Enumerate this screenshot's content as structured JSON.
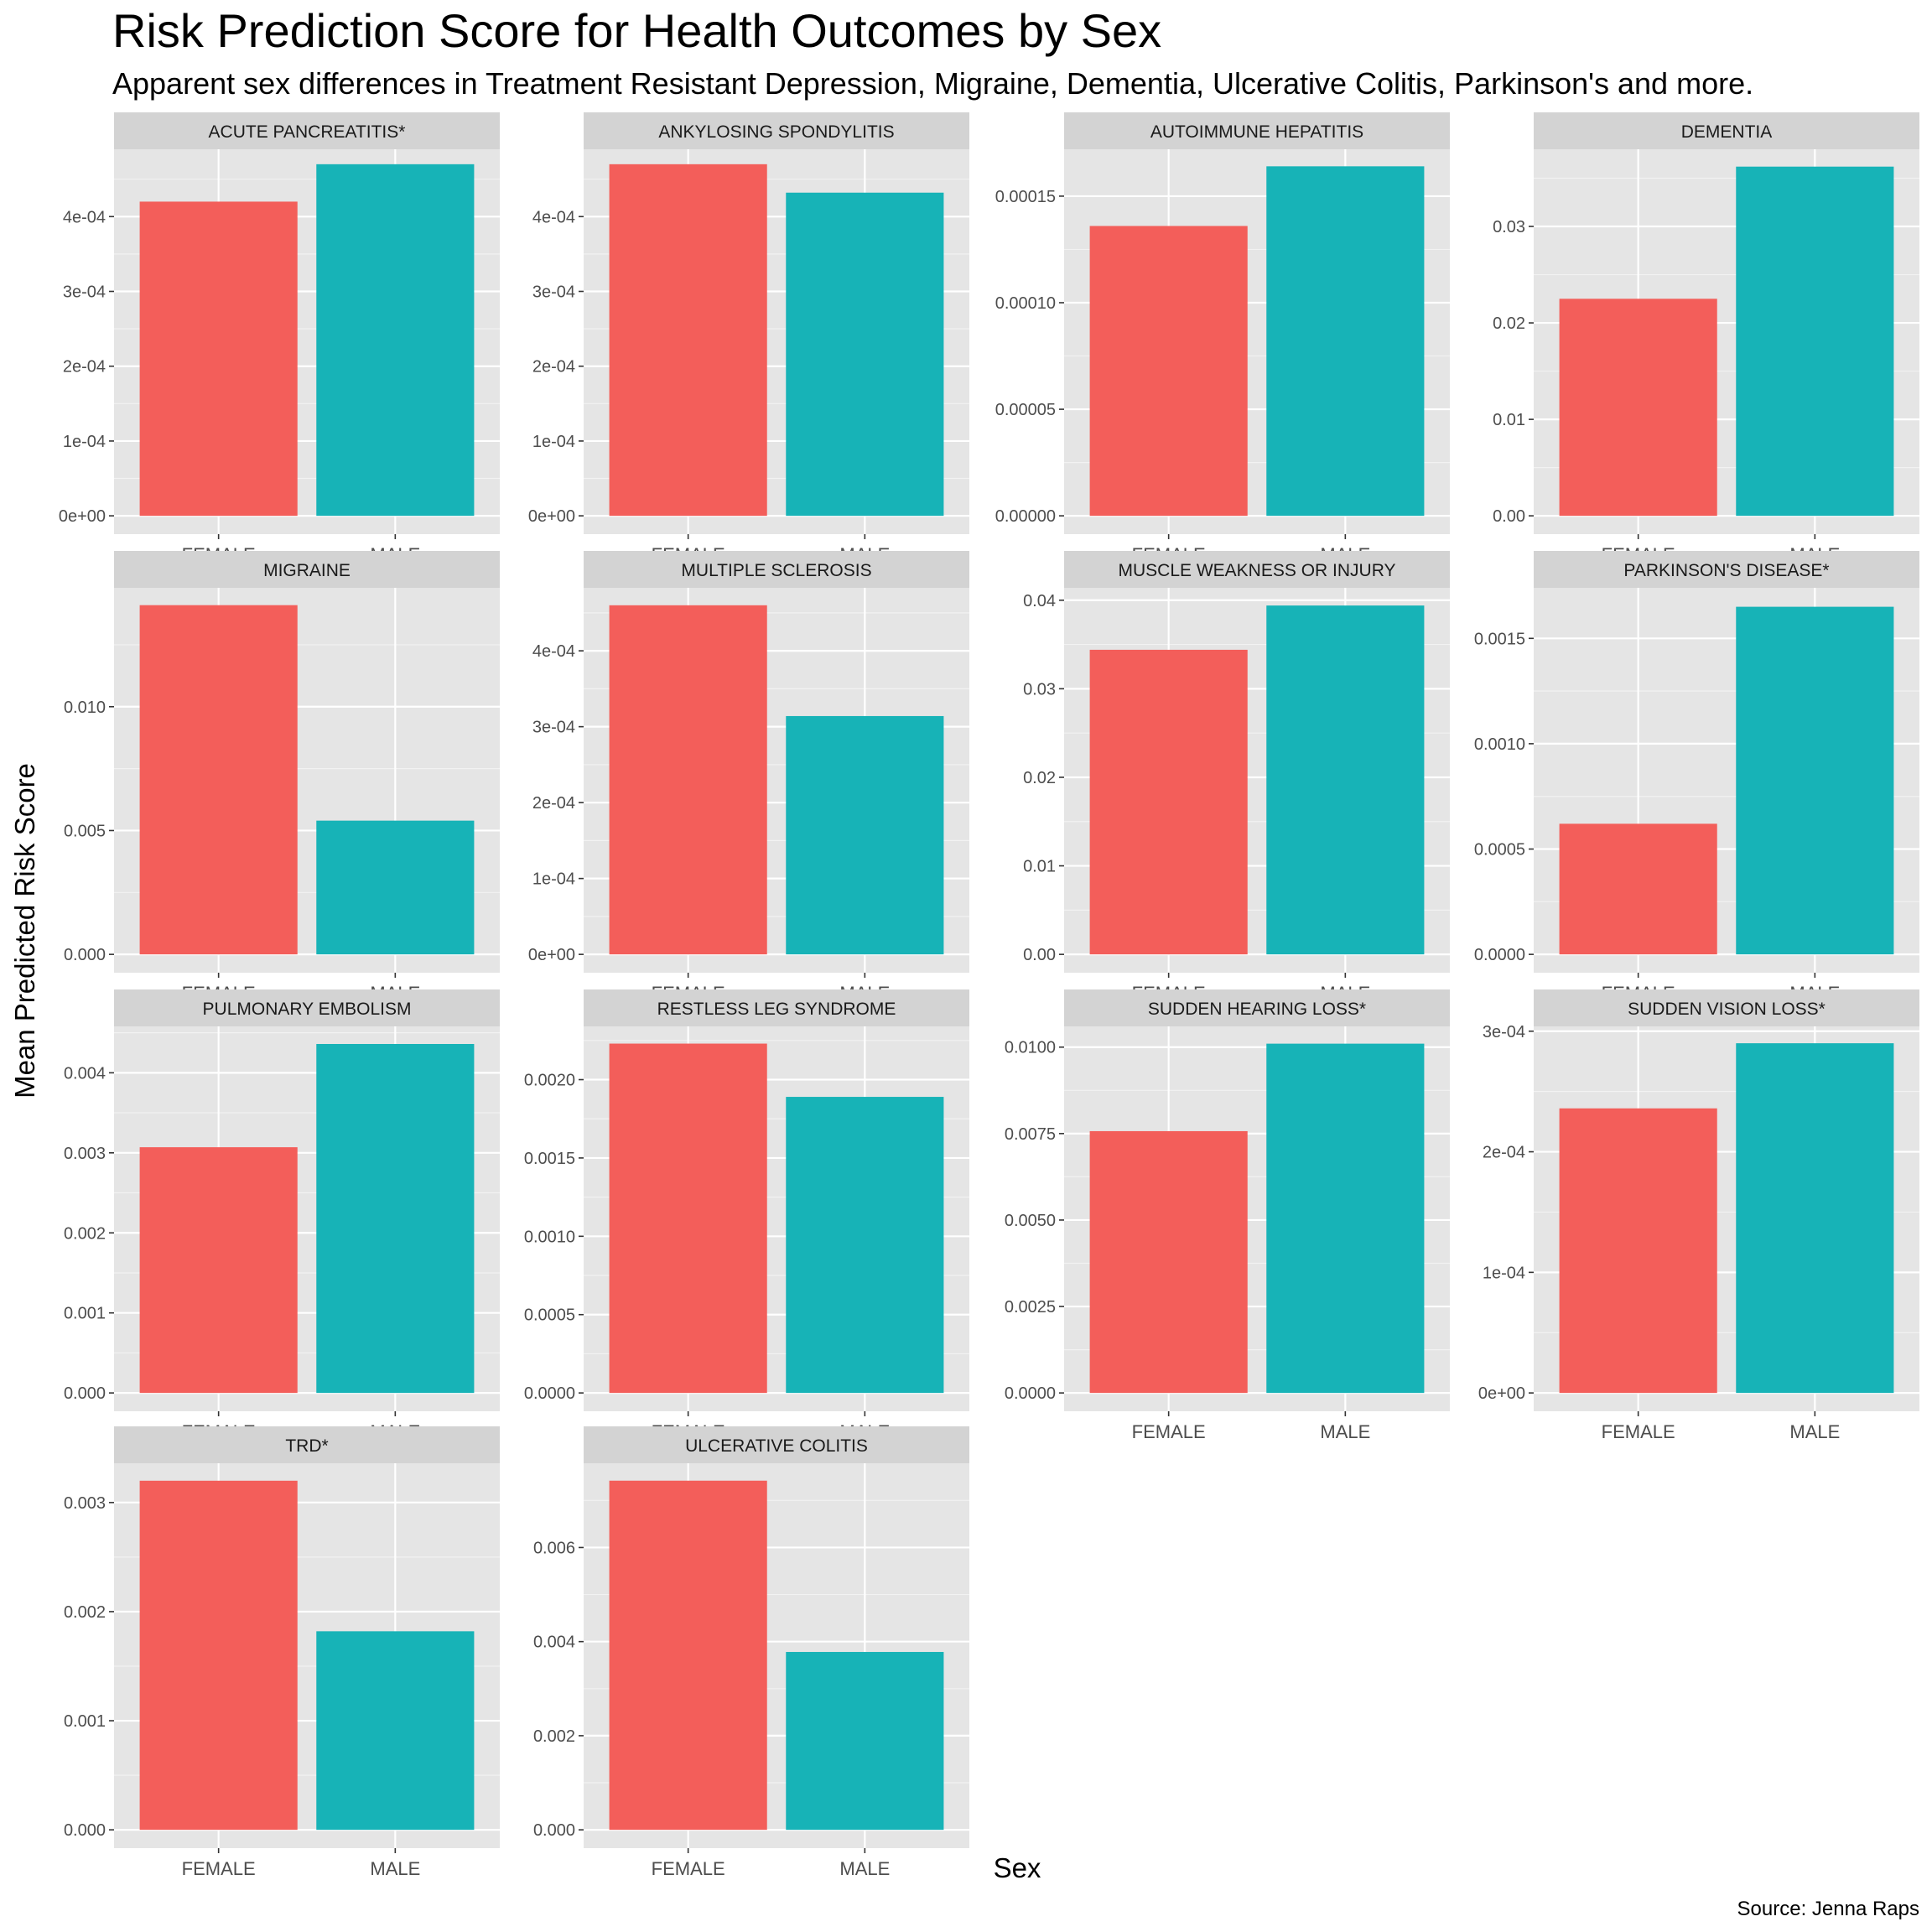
{
  "title": "Risk Prediction Score for Health Outcomes by Sex",
  "subtitle": "Apparent sex differences in Treatment Resistant Depression, Migraine, Dementia, Ulcerative Colitis, Parkinson's and more.",
  "caption": "Source: Jenna Raps",
  "colors": {
    "FEMALE": "#F35E5A",
    "MALE": "#17B3B7",
    "panel_bg": "#E5E5E5",
    "strip_bg": "#D3D3D3",
    "grid_major": "#FFFFFF",
    "grid_minor": "#F2F2F2",
    "axis_text": "#4D4D4D"
  },
  "chart_data": {
    "type": "bar",
    "xlabel": "Sex",
    "ylabel": "Mean Predicted Risk Score",
    "categories": [
      "FEMALE",
      "MALE"
    ],
    "facets": [
      {
        "name": "ACUTE PANCREATITIS*",
        "values": [
          0.00042,
          0.00047
        ],
        "ylim": [
          0,
          0.00049
        ],
        "ticks": [
          0,
          0.0001,
          0.0002,
          0.0003,
          0.0004
        ],
        "tick_labels": [
          "0e+00",
          "1e-04",
          "2e-04",
          "3e-04",
          "4e-04"
        ]
      },
      {
        "name": "ANKYLOSING SPONDYLITIS",
        "values": [
          0.00047,
          0.000432
        ],
        "ylim": [
          0,
          0.00049
        ],
        "ticks": [
          0,
          0.0001,
          0.0002,
          0.0003,
          0.0004
        ],
        "tick_labels": [
          "0e+00",
          "1e-04",
          "2e-04",
          "3e-04",
          "4e-04"
        ]
      },
      {
        "name": "AUTOIMMUNE HEPATITIS",
        "values": [
          0.000136,
          0.000164
        ],
        "ylim": [
          0,
          0.000172
        ],
        "ticks": [
          0,
          5e-05,
          0.0001,
          0.00015
        ],
        "tick_labels": [
          "0.00000",
          "0.00005",
          "0.00010",
          "0.00015"
        ]
      },
      {
        "name": "DEMENTIA",
        "values": [
          0.0225,
          0.0362
        ],
        "ylim": [
          0,
          0.038
        ],
        "ticks": [
          0,
          0.01,
          0.02,
          0.03
        ],
        "tick_labels": [
          "0.00",
          "0.01",
          "0.02",
          "0.03"
        ]
      },
      {
        "name": "MIGRAINE",
        "values": [
          0.0141,
          0.0054
        ],
        "ylim": [
          0,
          0.0148
        ],
        "ticks": [
          0,
          0.005,
          0.01
        ],
        "tick_labels": [
          "0.000",
          "0.005",
          "0.010"
        ]
      },
      {
        "name": "MULTIPLE SCLEROSIS",
        "values": [
          0.00046,
          0.000314
        ],
        "ylim": [
          0,
          0.000483
        ],
        "ticks": [
          0,
          0.0001,
          0.0002,
          0.0003,
          0.0004
        ],
        "tick_labels": [
          "0e+00",
          "1e-04",
          "2e-04",
          "3e-04",
          "4e-04"
        ]
      },
      {
        "name": "MUSCLE WEAKNESS OR INJURY",
        "values": [
          0.0344,
          0.0394
        ],
        "ylim": [
          0,
          0.0414
        ],
        "ticks": [
          0,
          0.01,
          0.02,
          0.03,
          0.04
        ],
        "tick_labels": [
          "0.00",
          "0.01",
          "0.02",
          "0.03",
          "0.04"
        ]
      },
      {
        "name": "PARKINSON'S DISEASE*",
        "values": [
          0.00062,
          0.00165
        ],
        "ylim": [
          0,
          0.00174
        ],
        "ticks": [
          0,
          0.0005,
          0.001,
          0.0015
        ],
        "tick_labels": [
          "0.0000",
          "0.0005",
          "0.0010",
          "0.0015"
        ]
      },
      {
        "name": "PULMONARY EMBOLISM",
        "values": [
          0.00307,
          0.00436
        ],
        "ylim": [
          0,
          0.00458
        ],
        "ticks": [
          0,
          0.001,
          0.002,
          0.003,
          0.004
        ],
        "tick_labels": [
          "0.000",
          "0.001",
          "0.002",
          "0.003",
          "0.004"
        ]
      },
      {
        "name": "RESTLESS LEG SYNDROME",
        "values": [
          0.00223,
          0.00189
        ],
        "ylim": [
          0,
          0.00234
        ],
        "ticks": [
          0,
          0.0005,
          0.001,
          0.0015,
          0.002
        ],
        "tick_labels": [
          "0.0000",
          "0.0005",
          "0.0010",
          "0.0015",
          "0.0020"
        ]
      },
      {
        "name": "SUDDEN HEARING LOSS*",
        "values": [
          0.00757,
          0.0101
        ],
        "ylim": [
          0,
          0.0106
        ],
        "ticks": [
          0,
          0.0025,
          0.005,
          0.0075,
          0.01
        ],
        "tick_labels": [
          "0.0000",
          "0.0025",
          "0.0050",
          "0.0075",
          "0.0100"
        ]
      },
      {
        "name": "SUDDEN VISION LOSS*",
        "values": [
          0.000236,
          0.00029
        ],
        "ylim": [
          0,
          0.000304
        ],
        "ticks": [
          0,
          0.0001,
          0.0002,
          0.0003
        ],
        "tick_labels": [
          "0e+00",
          "1e-04",
          "2e-04",
          "3e-04"
        ]
      },
      {
        "name": "TRD*",
        "values": [
          0.0032,
          0.00182
        ],
        "ylim": [
          0,
          0.00336
        ],
        "ticks": [
          0,
          0.001,
          0.002,
          0.003
        ],
        "tick_labels": [
          "0.000",
          "0.001",
          "0.002",
          "0.003"
        ]
      },
      {
        "name": "ULCERATIVE COLITIS",
        "values": [
          0.00742,
          0.00378
        ],
        "ylim": [
          0,
          0.00779
        ],
        "ticks": [
          0,
          0.002,
          0.004,
          0.006
        ],
        "tick_labels": [
          "0.000",
          "0.002",
          "0.004",
          "0.006"
        ]
      }
    ]
  }
}
